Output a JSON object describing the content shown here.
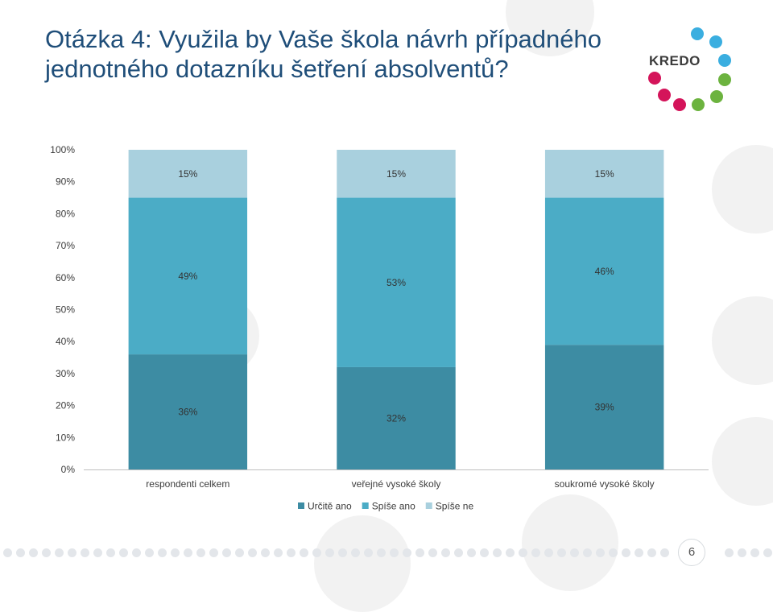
{
  "slide": {
    "title": "Otázka 4: Využila by Vaše škola návrh případného jednotného dotazníku šetření absolventů?",
    "page_number": "6"
  },
  "logo": {
    "text": "KREDO",
    "dot_colors": [
      "#3aaee0",
      "#3aaee0",
      "#3aaee0",
      "#6cb33f",
      "#6cb33f",
      "#6cb33f",
      "#d4145a",
      "#d4145a",
      "#d4145a"
    ]
  },
  "colors": {
    "urcite_ano": "#3d8ca3",
    "spise_ano": "#4bacc6",
    "spise_ne": "#a9d0de",
    "axis": "#bfbfbf",
    "text": "#3c3c3c"
  },
  "chart_data": {
    "type": "bar",
    "stacked": true,
    "categories": [
      "respondenti celkem",
      "veřejné vysoké školy",
      "soukromé vysoké školy"
    ],
    "series": [
      {
        "name": "Určitě ano",
        "values": [
          36,
          32,
          39
        ],
        "labels": [
          "36%",
          "32%",
          "39%"
        ]
      },
      {
        "name": "Spíše ano",
        "values": [
          49,
          53,
          46
        ],
        "labels": [
          "49%",
          "53%",
          "46%"
        ]
      },
      {
        "name": "Spíše ne",
        "values": [
          15,
          15,
          15
        ],
        "labels": [
          "15%",
          "15%",
          "15%"
        ]
      }
    ],
    "y_ticks": [
      "0%",
      "10%",
      "20%",
      "30%",
      "40%",
      "50%",
      "60%",
      "70%",
      "80%",
      "90%",
      "100%"
    ],
    "ylim": [
      0,
      100
    ],
    "legend_position": "bottom",
    "grid": false
  }
}
